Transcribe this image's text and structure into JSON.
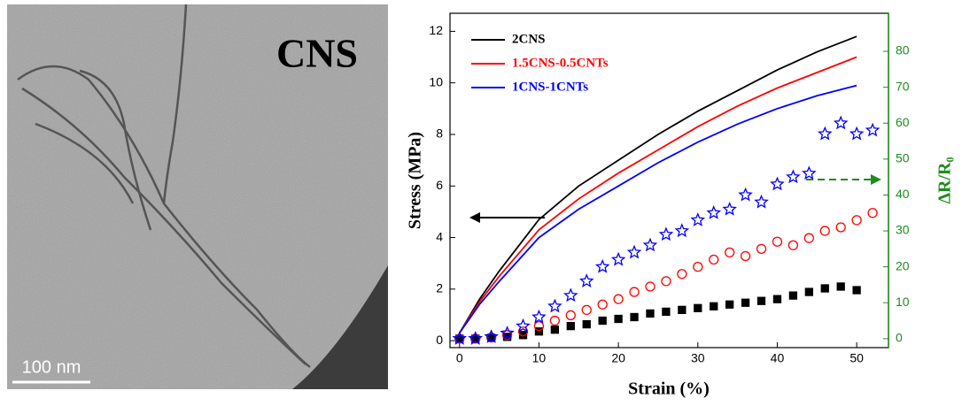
{
  "image_panel": {
    "label": "CNS",
    "scale_bar": "100 nm"
  },
  "chart_data": {
    "type": "line",
    "xlabel": "Strain (%)",
    "ylabel": "Stress (MPa)",
    "y2label": "ΔR/R₀",
    "xlim": [
      -1.2,
      54
    ],
    "xticks": [
      0,
      10,
      20,
      30,
      40,
      50
    ],
    "ylim": [
      -0.27,
      12.7
    ],
    "yticks": [
      0,
      2,
      4,
      6,
      8,
      10,
      12
    ],
    "y2lim": [
      -2.5,
      90.6
    ],
    "y2ticks": [
      0,
      10,
      20,
      30,
      40,
      50,
      60,
      70,
      80
    ],
    "y2color": "#1f8c1f",
    "legend": "upper left",
    "series": [
      {
        "name": "2CNS",
        "type": "line",
        "color": "#000000",
        "x": [
          0,
          2.5,
          5,
          10,
          15,
          20,
          25,
          30,
          35,
          40,
          45,
          50
        ],
        "values": [
          0.3,
          1.6,
          2.7,
          4.7,
          6.0,
          7.0,
          8.0,
          8.9,
          9.7,
          10.5,
          11.2,
          11.8
        ]
      },
      {
        "name": "1.5CNS-0.5CNTs",
        "type": "line",
        "color": "#ff0000",
        "x": [
          0,
          2.5,
          5,
          10,
          15,
          20,
          25,
          30,
          35,
          40,
          45,
          50
        ],
        "values": [
          0.3,
          1.5,
          2.5,
          4.3,
          5.5,
          6.5,
          7.4,
          8.3,
          9.1,
          9.8,
          10.4,
          11.0
        ]
      },
      {
        "name": "1CNS-1CNTs",
        "type": "line",
        "color": "#0000ff",
        "x": [
          0,
          2.5,
          5,
          10,
          15,
          20,
          25,
          30,
          35,
          40,
          45,
          50
        ],
        "values": [
          0.3,
          1.4,
          2.3,
          4.0,
          5.1,
          6.0,
          6.9,
          7.7,
          8.4,
          9.0,
          9.5,
          9.9
        ]
      },
      {
        "type": "scatter",
        "marker": "square",
        "axis": "y2",
        "color": "#000000",
        "x": [
          0,
          2,
          4,
          6,
          8,
          10,
          12,
          14,
          16,
          18,
          20,
          22,
          24,
          26,
          28,
          30,
          32,
          34,
          36,
          38,
          40,
          42,
          44,
          46,
          48,
          50,
          52
        ],
        "values": [
          0,
          0,
          0.2,
          0.5,
          1,
          2,
          2.5,
          3.5,
          4,
          5,
          5.5,
          6,
          7,
          7.5,
          8,
          8.5,
          9,
          9.5,
          10,
          10.5,
          11,
          12,
          13,
          14,
          14.5,
          13.5,
          null
        ]
      },
      {
        "type": "scatter",
        "marker": "circle",
        "axis": "y2",
        "color": "#ff0000",
        "x": [
          0,
          2,
          4,
          6,
          8,
          10,
          12,
          14,
          16,
          18,
          20,
          22,
          24,
          26,
          28,
          30,
          32,
          34,
          36,
          38,
          40,
          42,
          44,
          46,
          48,
          50,
          52
        ],
        "values": [
          0,
          0,
          0.3,
          1,
          2,
          3.5,
          5,
          6.5,
          8,
          9.5,
          11,
          13,
          14.5,
          16,
          18,
          20,
          22,
          24,
          23,
          25,
          27,
          26,
          28,
          30,
          31,
          33,
          35
        ]
      },
      {
        "type": "scatter",
        "marker": "star",
        "axis": "y2",
        "color": "#0000ff",
        "x": [
          0,
          2,
          4,
          6,
          8,
          10,
          12,
          14,
          16,
          18,
          20,
          22,
          24,
          26,
          28,
          30,
          32,
          34,
          36,
          38,
          40,
          42,
          44,
          46,
          48,
          50,
          52
        ],
        "values": [
          0,
          0,
          0.5,
          1.5,
          3.5,
          6,
          9,
          12,
          16,
          20,
          22,
          24,
          26,
          29,
          30,
          33,
          35,
          36,
          40,
          38,
          43,
          45,
          46,
          57,
          60,
          57,
          58
        ]
      }
    ]
  }
}
